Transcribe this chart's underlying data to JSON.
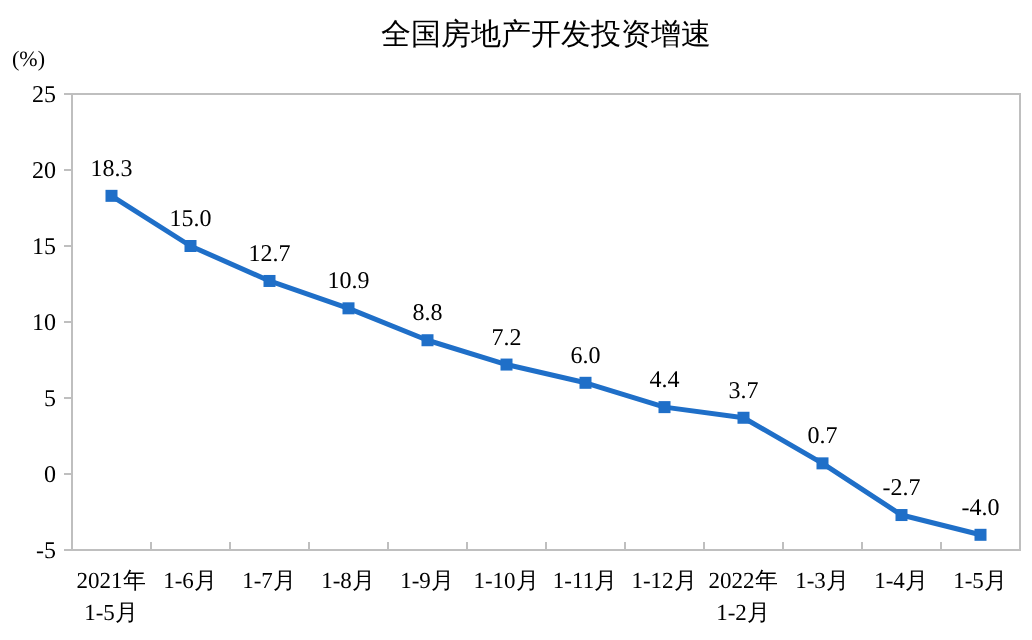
{
  "chart_data": {
    "type": "line",
    "title": "全国房地产开发投资增速",
    "ylabel": "(%)",
    "categories": [
      "2021年\n1-5月",
      "1-6月",
      "1-7月",
      "1-8月",
      "1-9月",
      "1-10月",
      "1-11月",
      "1-12月",
      "2022年\n1-2月",
      "1-3月",
      "1-4月",
      "1-5月"
    ],
    "series": [
      {
        "color": "#1f6fc8",
        "values": [
          18.3,
          15.0,
          12.7,
          10.9,
          8.8,
          7.2,
          6.0,
          4.4,
          3.7,
          0.7,
          -2.7,
          -4.0
        ],
        "value_labels": [
          "18.3",
          "15.0",
          "12.7",
          "10.9",
          "8.8",
          "7.2",
          "6.0",
          "4.4",
          "3.7",
          "0.7",
          "-2.7",
          "-4.0"
        ]
      }
    ],
    "ylim": [
      -5,
      25
    ],
    "yticks": [
      -5,
      0,
      5,
      10,
      15,
      20,
      25
    ],
    "marker": "square",
    "grid": false
  }
}
